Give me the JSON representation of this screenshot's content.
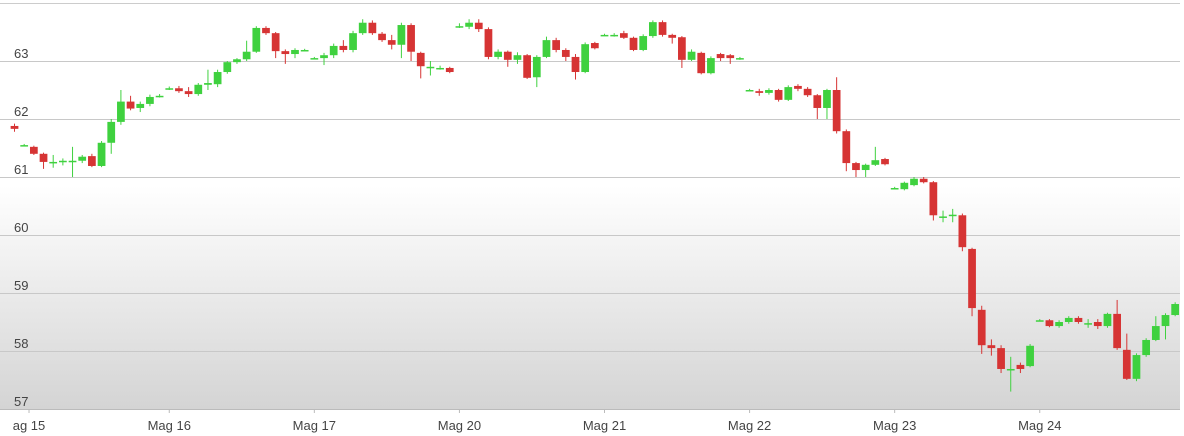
{
  "chart_data": {
    "type": "candlestick",
    "x": [
      0,
      1,
      2,
      3,
      4,
      5,
      6,
      7,
      8,
      9,
      10,
      11,
      12,
      13,
      14,
      15,
      16,
      17,
      18,
      19,
      20,
      21,
      22,
      23,
      24,
      25,
      26,
      27,
      28,
      29,
      30,
      31,
      32,
      33,
      34,
      35,
      36,
      37,
      38,
      39,
      40,
      41,
      42,
      43,
      44,
      45,
      46,
      47,
      48,
      49,
      50,
      51,
      52,
      53,
      54,
      55,
      56,
      57,
      58,
      59,
      60,
      61,
      62,
      63,
      64,
      65,
      66,
      67,
      68,
      69,
      70,
      71,
      72,
      73,
      74,
      75,
      76,
      77,
      78,
      79,
      80,
      81,
      82,
      83,
      84,
      85,
      86,
      87,
      88,
      89,
      90,
      91,
      92,
      93,
      94,
      95,
      96,
      97,
      98,
      99,
      100,
      101,
      102,
      103,
      104,
      105,
      106,
      107,
      108,
      109,
      110,
      111,
      112,
      113,
      114,
      115,
      116,
      117,
      118,
      119,
      120
    ],
    "open": [
      61.88,
      61.55,
      61.52,
      61.4,
      61.26,
      61.27,
      61.27,
      61.28,
      61.36,
      61.19,
      61.59,
      61.95,
      62.3,
      62.19,
      62.26,
      62.4,
      62.53,
      62.53,
      62.48,
      62.43,
      62.59,
      62.6,
      62.81,
      62.98,
      63.03,
      63.16,
      63.57,
      63.48,
      63.17,
      63.12,
      63.19,
      63.05,
      63.05,
      63.1,
      63.26,
      63.19,
      63.48,
      63.66,
      63.47,
      63.36,
      63.28,
      63.62,
      63.14,
      62.9,
      62.88,
      62.88,
      63.6,
      63.59,
      63.66,
      63.55,
      63.07,
      63.16,
      63.02,
      63.1,
      62.72,
      63.07,
      63.36,
      63.19,
      63.07,
      62.81,
      63.31,
      63.45,
      63.45,
      63.48,
      63.4,
      63.19,
      63.43,
      63.67,
      63.45,
      63.41,
      63.02,
      63.14,
      62.79,
      63.12,
      63.1,
      63.05,
      62.5,
      62.48,
      62.45,
      62.5,
      62.33,
      62.57,
      62.52,
      62.41,
      62.19,
      62.5,
      61.79,
      61.24,
      61.12,
      61.21,
      61.31,
      60.81,
      60.79,
      60.86,
      60.97,
      60.91,
      60.32,
      60.35,
      60.34,
      59.76,
      58.71,
      58.1,
      58.05,
      57.69,
      57.76,
      57.74,
      58.53,
      58.53,
      58.43,
      58.5,
      58.57,
      58.48,
      58.5,
      58.43,
      58.64,
      58.02,
      57.52,
      57.93,
      58.19,
      58.43,
      58.62
    ],
    "high": [
      61.92,
      61.57,
      61.54,
      61.42,
      61.38,
      61.32,
      61.52,
      61.38,
      61.4,
      61.62,
      62.0,
      62.5,
      62.4,
      62.3,
      62.42,
      62.43,
      62.56,
      62.57,
      62.55,
      62.62,
      62.85,
      62.85,
      63.0,
      63.05,
      63.35,
      63.6,
      63.6,
      63.5,
      63.2,
      63.22,
      63.21,
      63.07,
      63.14,
      63.3,
      63.36,
      63.52,
      63.72,
      63.7,
      63.5,
      63.45,
      63.66,
      63.65,
      63.16,
      63.0,
      62.92,
      62.9,
      63.65,
      63.72,
      63.72,
      63.58,
      63.2,
      63.18,
      63.15,
      63.12,
      63.1,
      63.42,
      63.4,
      63.22,
      63.12,
      63.32,
      63.33,
      63.47,
      63.48,
      63.52,
      63.42,
      63.46,
      63.7,
      63.7,
      63.47,
      63.43,
      63.2,
      63.16,
      63.08,
      63.14,
      63.12,
      63.07,
      62.52,
      62.52,
      62.53,
      62.52,
      62.58,
      62.6,
      62.55,
      62.43,
      62.52,
      62.72,
      61.82,
      61.26,
      61.23,
      61.52,
      61.33,
      60.83,
      60.92,
      61.0,
      61.0,
      60.93,
      60.42,
      60.45,
      60.37,
      59.78,
      58.78,
      58.2,
      58.1,
      57.9,
      57.8,
      58.12,
      58.55,
      58.55,
      58.53,
      58.6,
      58.6,
      58.55,
      58.55,
      58.66,
      58.88,
      58.3,
      57.96,
      58.22,
      58.6,
      58.65,
      58.84
    ],
    "low": [
      61.78,
      61.53,
      61.38,
      61.14,
      61.16,
      61.2,
      61.0,
      61.24,
      61.17,
      61.17,
      61.4,
      61.9,
      62.15,
      62.12,
      62.22,
      62.37,
      62.5,
      62.45,
      62.38,
      62.4,
      62.5,
      62.55,
      62.78,
      62.95,
      63.0,
      63.14,
      63.45,
      63.05,
      62.95,
      63.05,
      63.17,
      63.03,
      62.93,
      63.05,
      63.15,
      63.15,
      63.45,
      63.45,
      63.33,
      63.2,
      63.05,
      63.0,
      62.7,
      62.75,
      62.85,
      62.79,
      63.57,
      63.55,
      63.5,
      63.03,
      63.03,
      62.9,
      62.95,
      62.69,
      62.55,
      63.05,
      63.15,
      63.0,
      62.68,
      62.79,
      63.2,
      63.43,
      63.42,
      63.38,
      63.17,
      63.17,
      63.4,
      63.42,
      63.3,
      62.88,
      63.0,
      62.77,
      62.77,
      63.0,
      62.95,
      63.02,
      62.48,
      62.4,
      62.42,
      62.3,
      62.31,
      62.48,
      62.38,
      62.0,
      62.0,
      61.75,
      61.1,
      61.0,
      61.0,
      61.19,
      61.2,
      60.79,
      60.77,
      60.84,
      60.89,
      60.25,
      60.22,
      60.22,
      59.72,
      58.6,
      57.95,
      57.92,
      57.62,
      57.3,
      57.62,
      57.72,
      58.51,
      58.41,
      58.4,
      58.47,
      58.47,
      58.4,
      58.38,
      58.4,
      58.02,
      57.5,
      57.48,
      57.9,
      58.17,
      58.2,
      58.6
    ],
    "close": [
      61.83,
      61.55,
      61.4,
      61.26,
      61.26,
      61.28,
      61.28,
      61.35,
      61.19,
      61.59,
      61.95,
      62.3,
      62.18,
      62.26,
      62.38,
      62.4,
      62.53,
      62.48,
      62.43,
      62.59,
      62.62,
      62.81,
      62.98,
      63.03,
      63.16,
      63.57,
      63.48,
      63.17,
      63.12,
      63.19,
      63.19,
      63.05,
      63.1,
      63.26,
      63.19,
      63.48,
      63.66,
      63.48,
      63.36,
      63.28,
      63.62,
      63.16,
      62.91,
      62.9,
      62.88,
      62.81,
      63.6,
      63.66,
      63.55,
      63.07,
      63.16,
      63.02,
      63.1,
      62.71,
      63.07,
      63.36,
      63.19,
      63.07,
      62.81,
      63.29,
      63.22,
      63.45,
      63.45,
      63.4,
      63.19,
      63.43,
      63.67,
      63.45,
      63.4,
      63.02,
      63.16,
      62.79,
      63.05,
      63.05,
      63.05,
      63.05,
      62.5,
      62.45,
      62.5,
      62.33,
      62.55,
      62.52,
      62.41,
      62.19,
      62.5,
      61.79,
      61.24,
      61.12,
      61.21,
      61.29,
      61.22,
      60.81,
      60.9,
      60.97,
      60.91,
      60.34,
      60.32,
      60.35,
      59.79,
      58.74,
      58.1,
      58.05,
      57.69,
      57.69,
      57.69,
      58.09,
      58.53,
      58.43,
      58.5,
      58.57,
      58.5,
      58.48,
      58.43,
      58.64,
      58.05,
      57.52,
      57.93,
      58.19,
      58.43,
      58.62,
      58.81
    ],
    "up_color": "#3fd13f",
    "down_color": "#d63434",
    "xlim": [
      -1.5,
      120.5
    ],
    "xticks": [
      {
        "value": 1.5,
        "label": "ag 15"
      },
      {
        "value": 16,
        "label": "Mag 16"
      },
      {
        "value": 31,
        "label": "Mag 17"
      },
      {
        "value": 46,
        "label": "Mag 20"
      },
      {
        "value": 61,
        "label": "Mag 21"
      },
      {
        "value": 76,
        "label": "Mag 22"
      },
      {
        "value": 91,
        "label": "Mag 23"
      },
      {
        "value": 106,
        "label": "Mag 24"
      }
    ],
    "ylim": [
      57,
      64
    ],
    "yticks": [
      57,
      58,
      59,
      60,
      61,
      62,
      63
    ],
    "grid": true
  }
}
